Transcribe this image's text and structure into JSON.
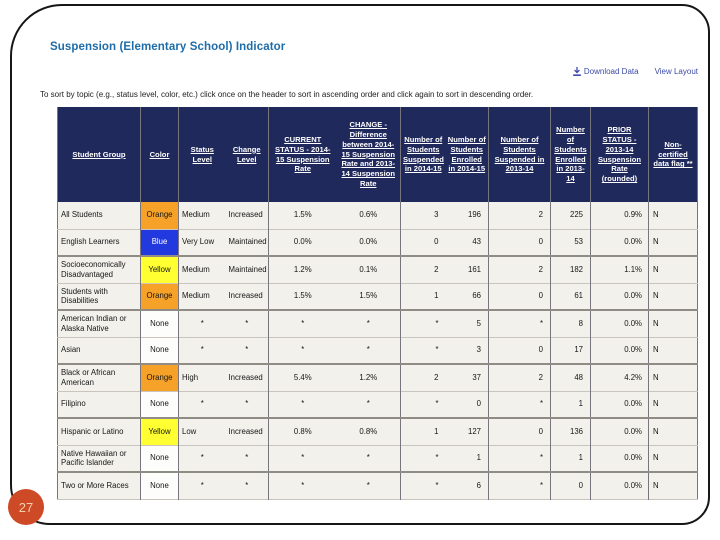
{
  "page": {
    "title": "Suspension (Elementary School) Indicator",
    "page_number": "27",
    "toolbar": {
      "download_label": "Download Data",
      "view_layout_label": "View Layout"
    },
    "instruction": "To sort by topic (e.g., status level, color, etc.) click once on the header to sort in ascending order and click again to sort in descending order."
  },
  "colors": {
    "header_bg": "#20295C",
    "title_blue": "#1E6CA8",
    "link_blue": "#3D4BA8",
    "badge_orange": "#CE4A27",
    "cell_orange": "#F6A229",
    "cell_blue": "#2239DF",
    "cell_yellow": "#FFFF31",
    "cell_none": "#FDFDFC"
  },
  "table": {
    "columns": [
      {
        "id": "student-group",
        "label": "Student Group"
      },
      {
        "id": "color",
        "label": "Color"
      },
      {
        "id": "status-level",
        "label": "Status Level"
      },
      {
        "id": "change-level",
        "label": "Change Level"
      },
      {
        "id": "current-status",
        "label": "CURRENT STATUS - 2014-15 Suspension Rate"
      },
      {
        "id": "change",
        "label": "CHANGE - Difference between 2014-15 Suspension Rate and 2013-14 Suspension Rate"
      },
      {
        "id": "num-suspended-2014-15",
        "label": "Number of Students Suspended in 2014-15"
      },
      {
        "id": "num-enrolled-2014-15",
        "label": "Number of Students Enrolled in 2014-15"
      },
      {
        "id": "num-suspended-2013-14",
        "label": "Number of Students Suspended in 2013-14"
      },
      {
        "id": "num-enrolled-2013-14",
        "label": "Number of Students Enrolled in 2013-14"
      },
      {
        "id": "prior-status",
        "label": "PRIOR STATUS - 2013-14 Suspension Rate (rounded)"
      },
      {
        "id": "non-certified-flag",
        "label": "Non-certified data flag **"
      }
    ],
    "rows": [
      {
        "group": "All Students",
        "color": "Orange",
        "color_hex": "#F6A229",
        "color_text_hex": "#161616",
        "status_level": "Medium",
        "change_level": "Increased",
        "current_status_rate": "1.5%",
        "change_rate": "0.6%",
        "suspended_2014_15": "3",
        "enrolled_2014_15": "196",
        "suspended_2013_14": "2",
        "enrolled_2013_14": "225",
        "prior_status_rate": "0.9%",
        "flag": "N"
      },
      {
        "group": "English Learners",
        "color": "Blue",
        "color_hex": "#2239DF",
        "color_text_hex": "#FFFFFF",
        "status_level": "Very Low",
        "change_level": "Maintained",
        "current_status_rate": "0.0%",
        "change_rate": "0.0%",
        "suspended_2014_15": "0",
        "enrolled_2014_15": "43",
        "suspended_2013_14": "0",
        "enrolled_2013_14": "53",
        "prior_status_rate": "0.0%",
        "flag": "N"
      },
      {
        "group": "Socioeconomically Disadvantaged",
        "color": "Yellow",
        "color_hex": "#FFFF31",
        "color_text_hex": "#161616",
        "status_level": "Medium",
        "change_level": "Maintained",
        "current_status_rate": "1.2%",
        "change_rate": "0.1%",
        "suspended_2014_15": "2",
        "enrolled_2014_15": "161",
        "suspended_2013_14": "2",
        "enrolled_2013_14": "182",
        "prior_status_rate": "1.1%",
        "flag": "N"
      },
      {
        "group": "Students with Disabilities",
        "color": "Orange",
        "color_hex": "#F6A229",
        "color_text_hex": "#161616",
        "status_level": "Medium",
        "change_level": "Increased",
        "current_status_rate": "1.5%",
        "change_rate": "1.5%",
        "suspended_2014_15": "1",
        "enrolled_2014_15": "66",
        "suspended_2013_14": "0",
        "enrolled_2013_14": "61",
        "prior_status_rate": "0.0%",
        "flag": "N"
      },
      {
        "group": "American Indian or Alaska Native",
        "color": "None",
        "color_hex": "#FDFDFC",
        "color_text_hex": "#161616",
        "status_level": "*",
        "change_level": "*",
        "current_status_rate": "*",
        "change_rate": "*",
        "suspended_2014_15": "*",
        "enrolled_2014_15": "5",
        "suspended_2013_14": "*",
        "enrolled_2013_14": "8",
        "prior_status_rate": "0.0%",
        "flag": "N"
      },
      {
        "group": "Asian",
        "color": "None",
        "color_hex": "#FDFDFC",
        "color_text_hex": "#161616",
        "status_level": "*",
        "change_level": "*",
        "current_status_rate": "*",
        "change_rate": "*",
        "suspended_2014_15": "*",
        "enrolled_2014_15": "3",
        "suspended_2013_14": "0",
        "enrolled_2013_14": "17",
        "prior_status_rate": "0.0%",
        "flag": "N"
      },
      {
        "group": "Black or African American",
        "color": "Orange",
        "color_hex": "#F6A229",
        "color_text_hex": "#161616",
        "status_level": "High",
        "change_level": "Increased",
        "current_status_rate": "5.4%",
        "change_rate": "1.2%",
        "suspended_2014_15": "2",
        "enrolled_2014_15": "37",
        "suspended_2013_14": "2",
        "enrolled_2013_14": "48",
        "prior_status_rate": "4.2%",
        "flag": "N"
      },
      {
        "group": "Filipino",
        "color": "None",
        "color_hex": "#FDFDFC",
        "color_text_hex": "#161616",
        "status_level": "*",
        "change_level": "*",
        "current_status_rate": "*",
        "change_rate": "*",
        "suspended_2014_15": "*",
        "enrolled_2014_15": "0",
        "suspended_2013_14": "*",
        "enrolled_2013_14": "1",
        "prior_status_rate": "0.0%",
        "flag": "N"
      },
      {
        "group": "Hispanic or Latino",
        "color": "Yellow",
        "color_hex": "#FFFF31",
        "color_text_hex": "#161616",
        "status_level": "Low",
        "change_level": "Increased",
        "current_status_rate": "0.8%",
        "change_rate": "0.8%",
        "suspended_2014_15": "1",
        "enrolled_2014_15": "127",
        "suspended_2013_14": "0",
        "enrolled_2013_14": "136",
        "prior_status_rate": "0.0%",
        "flag": "N"
      },
      {
        "group": "Native Hawaiian or Pacific Islander",
        "color": "None",
        "color_hex": "#FDFDFC",
        "color_text_hex": "#161616",
        "status_level": "*",
        "change_level": "*",
        "current_status_rate": "*",
        "change_rate": "*",
        "suspended_2014_15": "*",
        "enrolled_2014_15": "1",
        "suspended_2013_14": "*",
        "enrolled_2013_14": "1",
        "prior_status_rate": "0.0%",
        "flag": "N"
      },
      {
        "group": "Two or More Races",
        "color": "None",
        "color_hex": "#FDFDFC",
        "color_text_hex": "#161616",
        "status_level": "*",
        "change_level": "*",
        "current_status_rate": "*",
        "change_rate": "*",
        "suspended_2014_15": "*",
        "enrolled_2014_15": "6",
        "suspended_2013_14": "*",
        "enrolled_2013_14": "0",
        "prior_status_rate": "0.0%",
        "flag": "N"
      }
    ]
  }
}
